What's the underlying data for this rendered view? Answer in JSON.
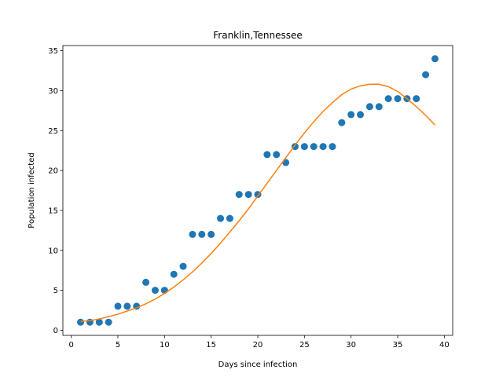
{
  "chart_data": {
    "type": "scatter",
    "title": "Franklin,Tennessee",
    "xlabel": "Days since infection",
    "ylabel": "Population infected",
    "xlim": [
      -0.9,
      40.9
    ],
    "ylim": [
      -0.65,
      35.65
    ],
    "xticks": [
      0,
      5,
      10,
      15,
      20,
      25,
      30,
      35,
      40
    ],
    "yticks": [
      0,
      5,
      10,
      15,
      20,
      25,
      30,
      35
    ],
    "grid": false,
    "series": [
      {
        "kind": "scatter",
        "color": "#1f77b4",
        "x": [
          1,
          2,
          3,
          4,
          5,
          6,
          7,
          8,
          9,
          10,
          11,
          12,
          13,
          14,
          15,
          16,
          17,
          18,
          19,
          20,
          21,
          22,
          23,
          24,
          25,
          26,
          27,
          28,
          29,
          30,
          31,
          32,
          33,
          34,
          35,
          36,
          37,
          38,
          39
        ],
        "y": [
          1,
          1,
          1,
          1,
          3,
          3,
          3,
          6,
          5,
          5,
          7,
          8,
          12,
          12,
          12,
          14,
          14,
          17,
          17,
          17,
          22,
          22,
          21,
          23,
          23,
          23,
          23,
          23,
          26,
          27,
          27,
          28,
          28,
          29,
          29,
          29,
          29,
          32,
          34
        ]
      },
      {
        "kind": "line",
        "color": "#ff7f0e",
        "x": [
          1,
          2,
          3,
          4,
          5,
          6,
          7,
          8,
          9,
          10,
          11,
          12,
          13,
          14,
          15,
          16,
          17,
          18,
          19,
          20,
          21,
          22,
          23,
          24,
          25,
          26,
          27,
          28,
          29,
          30,
          31,
          32,
          33,
          34,
          35,
          36,
          37,
          38,
          39
        ],
        "y": [
          1.1,
          1.2,
          1.4,
          1.7,
          2.0,
          2.4,
          2.8,
          3.3,
          3.9,
          4.6,
          5.4,
          6.3,
          7.3,
          8.4,
          9.6,
          10.9,
          12.3,
          13.7,
          15.2,
          16.8,
          18.4,
          20.0,
          21.6,
          23.2,
          24.7,
          26.1,
          27.4,
          28.5,
          29.5,
          30.2,
          30.6,
          30.8,
          30.8,
          30.5,
          29.9,
          29.0,
          28.0,
          26.9,
          25.7
        ]
      }
    ]
  }
}
